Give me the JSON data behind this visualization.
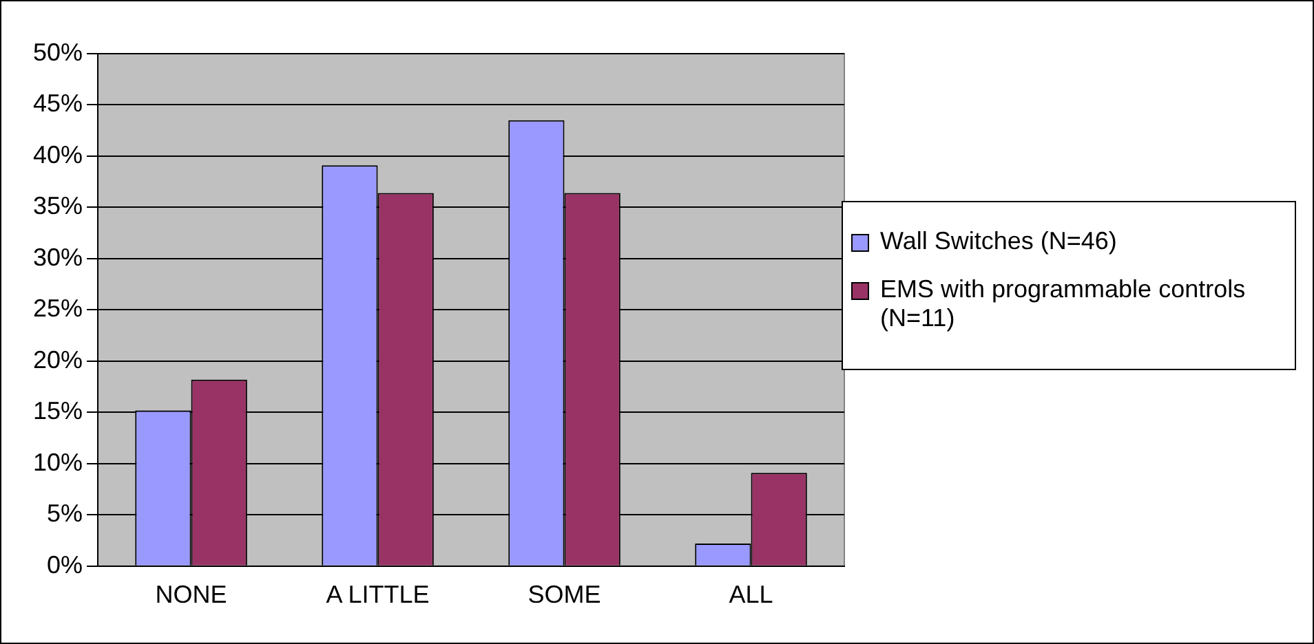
{
  "chart_data": {
    "type": "bar",
    "categories": [
      "NONE",
      "A LITTLE",
      "SOME",
      "ALL"
    ],
    "series": [
      {
        "name": "Wall Switches (N=46)",
        "color": "#9999ff",
        "values": [
          15.2,
          39.1,
          43.5,
          2.2
        ]
      },
      {
        "name": "EMS with programmable controls (N=11)",
        "color": "#993366",
        "values": [
          18.2,
          36.4,
          36.4,
          9.1
        ]
      }
    ],
    "ylim": [
      0,
      50
    ],
    "yticks": [
      {
        "value": 0,
        "label": "0%"
      },
      {
        "value": 5,
        "label": "5%"
      },
      {
        "value": 10,
        "label": "10%"
      },
      {
        "value": 15,
        "label": "15%"
      },
      {
        "value": 20,
        "label": "20%"
      },
      {
        "value": 25,
        "label": "25%"
      },
      {
        "value": 30,
        "label": "30%"
      },
      {
        "value": 35,
        "label": "35%"
      },
      {
        "value": 40,
        "label": "40%"
      },
      {
        "value": 45,
        "label": "45%"
      },
      {
        "value": 50,
        "label": "50%"
      }
    ],
    "grid": "y",
    "legend": "right"
  }
}
